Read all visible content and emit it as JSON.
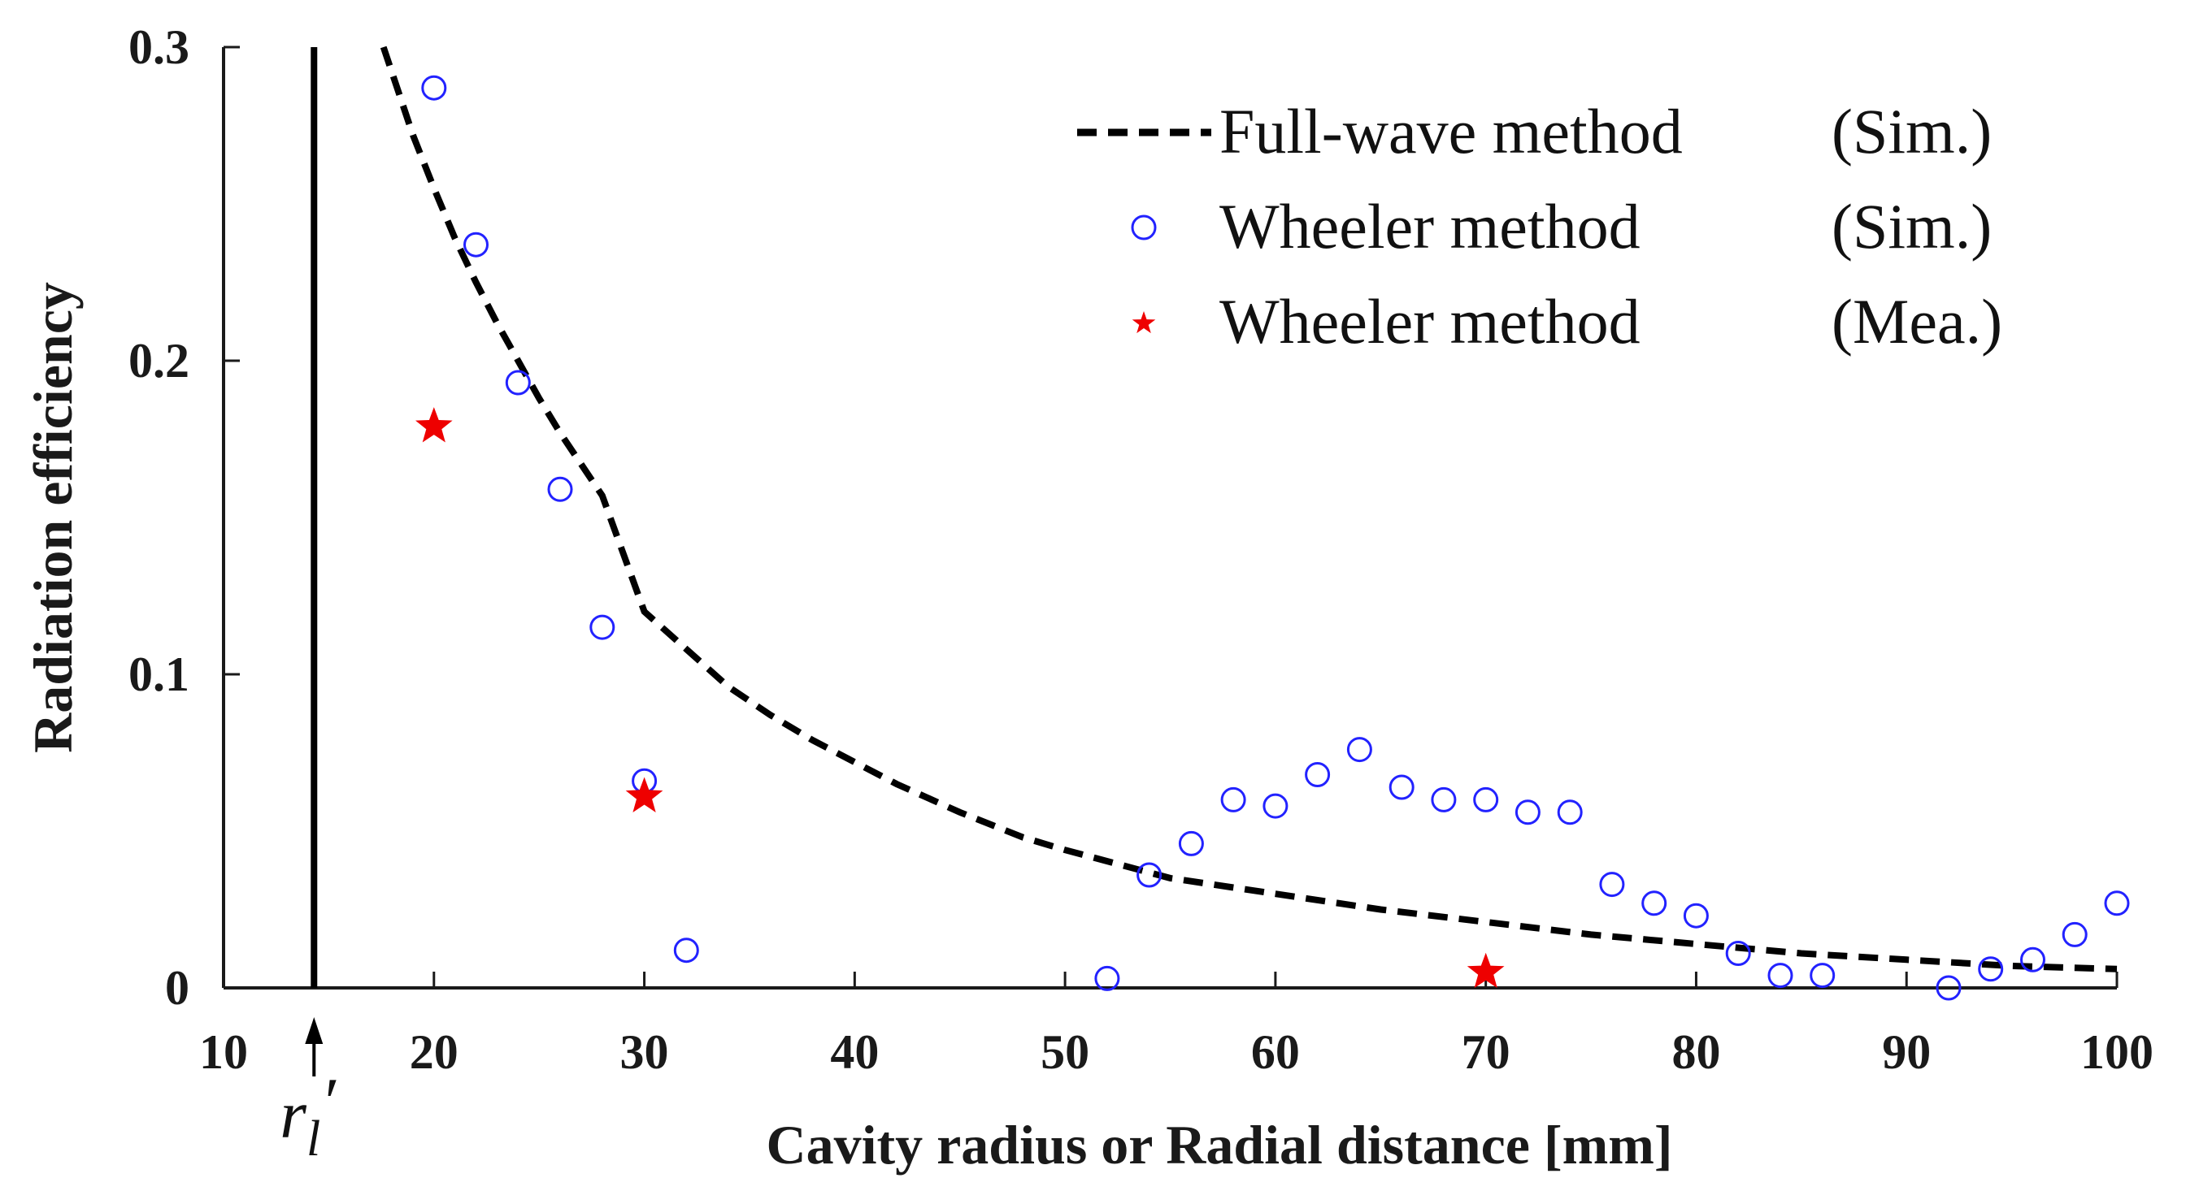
{
  "chart_data": {
    "type": "line",
    "title": "",
    "xlabel": "Cavity radius or Radial distance [mm]",
    "ylabel": "Radiation efficiency",
    "xlim": [
      10,
      100
    ],
    "ylim": [
      0,
      0.3
    ],
    "x_ticks": [
      10,
      20,
      30,
      40,
      50,
      60,
      70,
      80,
      90,
      100
    ],
    "y_ticks": [
      {
        "value": 0,
        "label": "0"
      },
      {
        "value": 0.1,
        "label": "0.1"
      },
      {
        "value": 0.2,
        "label": "0.2"
      },
      {
        "value": 0.3,
        "label": "0.3"
      }
    ],
    "grid": false,
    "legend_position": "top-right",
    "reference_line": {
      "x": 14.3,
      "label_main": "r",
      "label_sub": "l",
      "label_prime": "′"
    },
    "series": [
      {
        "name": "Full-wave method",
        "tag": "(Sim.)",
        "style": "dashed-line",
        "color": "#000000",
        "x": [
          17.6,
          19,
          20,
          21,
          22,
          23,
          24,
          25,
          26,
          27,
          28,
          30,
          32,
          34,
          36,
          38,
          40,
          42,
          45,
          48,
          50,
          55,
          60,
          65,
          70,
          75,
          80,
          85,
          90,
          95,
          100
        ],
        "y": [
          0.3,
          0.272,
          0.255,
          0.239,
          0.225,
          0.212,
          0.2,
          0.188,
          0.177,
          0.167,
          0.157,
          0.12,
          0.108,
          0.096,
          0.087,
          0.079,
          0.072,
          0.065,
          0.056,
          0.048,
          0.044,
          0.035,
          0.03,
          0.025,
          0.021,
          0.017,
          0.014,
          0.011,
          0.009,
          0.007,
          0.006
        ]
      },
      {
        "name": "Wheeler method",
        "tag": "(Sim.)",
        "style": "open-circle",
        "color": "#2222ff",
        "x": [
          20,
          22,
          24,
          26,
          28,
          30,
          32,
          52,
          54,
          56,
          58,
          60,
          62,
          64,
          66,
          68,
          70,
          72,
          74,
          76,
          78,
          80,
          82,
          84,
          86,
          92,
          94,
          96,
          98,
          100
        ],
        "y": [
          0.287,
          0.237,
          0.193,
          0.159,
          0.115,
          0.066,
          0.012,
          0.003,
          0.036,
          0.046,
          0.06,
          0.058,
          0.068,
          0.076,
          0.064,
          0.06,
          0.06,
          0.056,
          0.056,
          0.033,
          0.027,
          0.023,
          0.011,
          0.004,
          0.004,
          0.0,
          0.006,
          0.009,
          0.017,
          0.027
        ]
      },
      {
        "name": "Wheeler method",
        "tag": "(Mea.)",
        "style": "star",
        "color": "#ee0000",
        "x": [
          20,
          30,
          70
        ],
        "y": [
          0.179,
          0.061,
          0.005
        ]
      }
    ]
  }
}
